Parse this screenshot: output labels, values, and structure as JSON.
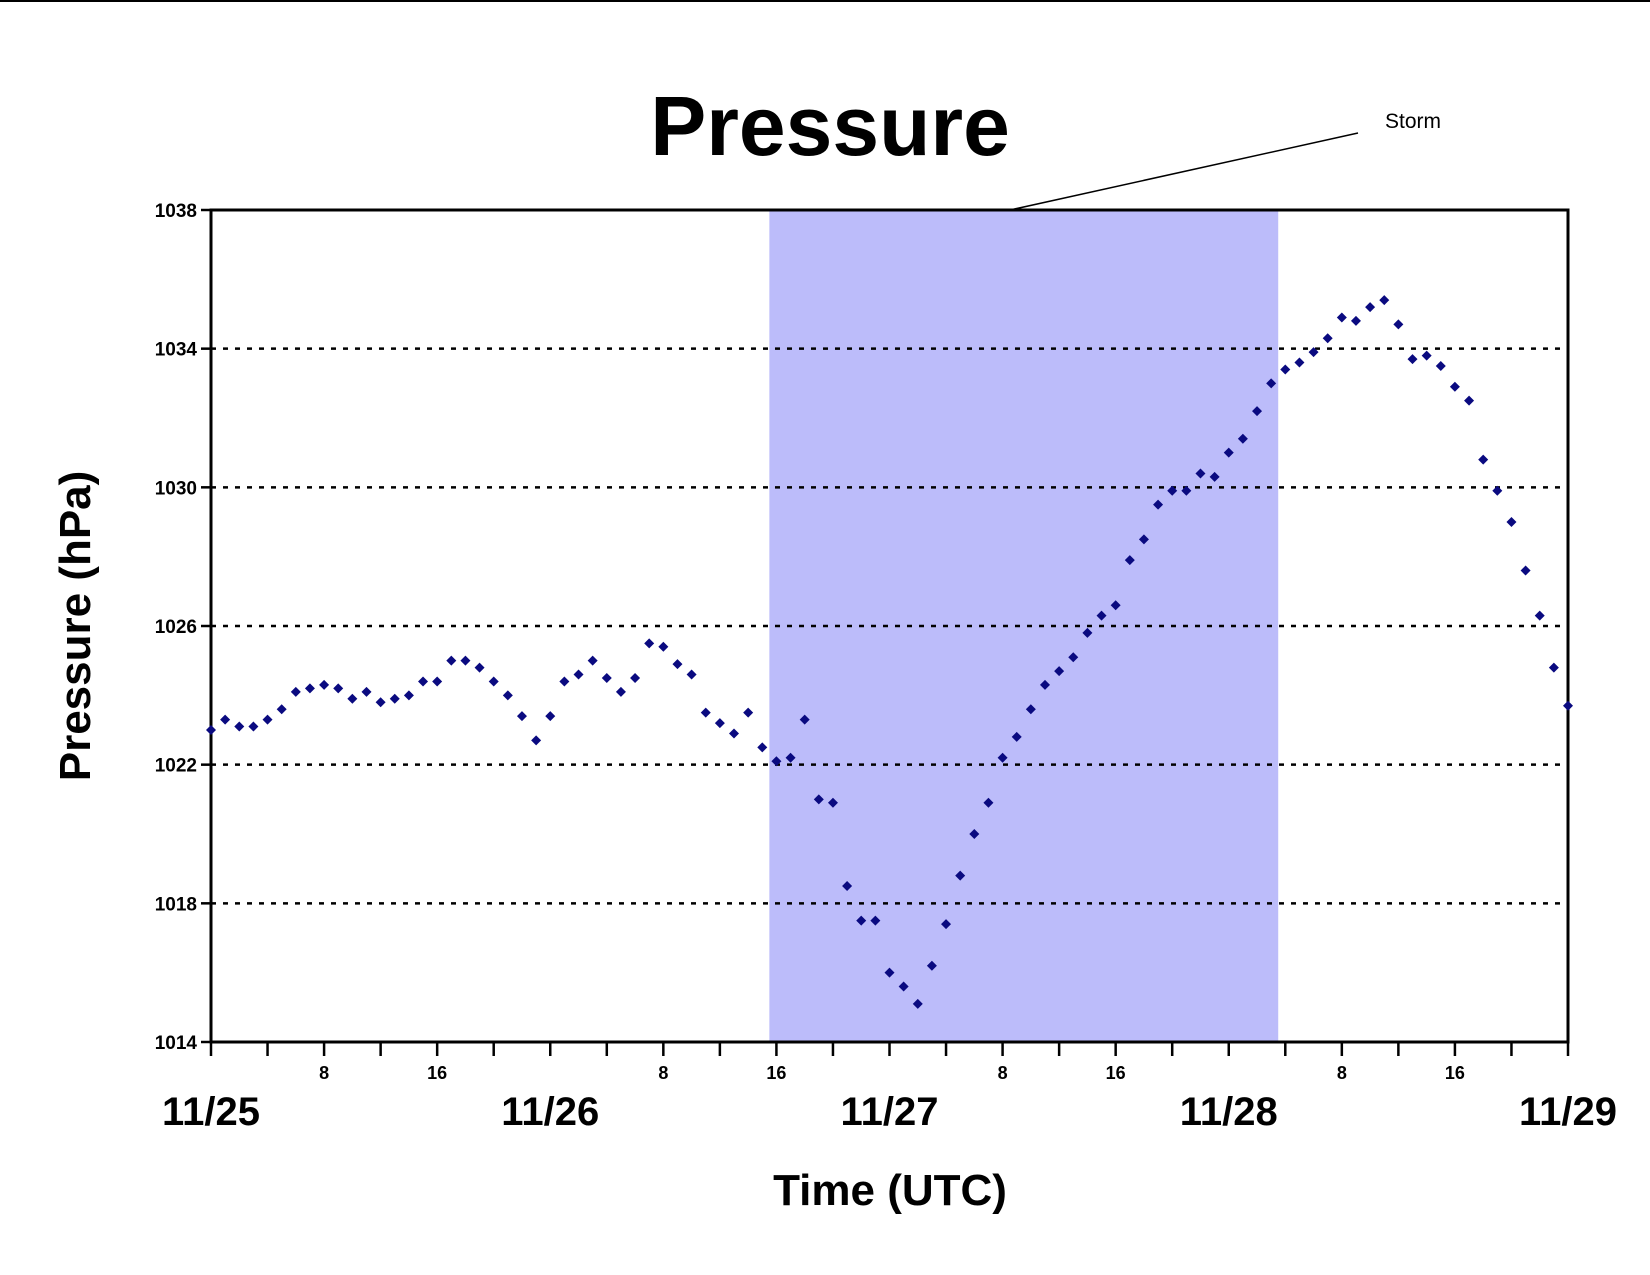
{
  "chart_data": {
    "type": "scatter",
    "title": "Pressure",
    "xlabel": "Time (UTC)",
    "ylabel": "Pressure (hPa)",
    "xlim": [
      "11/25 00:00",
      "11/29 00:00"
    ],
    "ylim": [
      1014,
      1038
    ],
    "yticks": [
      1014,
      1018,
      1022,
      1026,
      1030,
      1034,
      1038
    ],
    "xticks_day": [
      "11/25",
      "11/26",
      "11/27",
      "11/28",
      "11/29"
    ],
    "xticks_hour": [
      "8",
      "16"
    ],
    "grid": "horizontal dotted",
    "marker_color": "#0a0a80",
    "shade_color": "#bcbcfa",
    "shaded_region": {
      "label": "Storm",
      "start": "11/26 15:30",
      "end": "11/28 03:30"
    },
    "series": [
      {
        "x": [
          "11/25 00:00",
          "11/25 01:00",
          "11/25 02:00",
          "11/25 03:00",
          "11/25 04:00",
          "11/25 05:00",
          "11/25 06:00",
          "11/25 07:00",
          "11/25 08:00",
          "11/25 09:00",
          "11/25 10:00",
          "11/25 11:00",
          "11/25 12:00",
          "11/25 13:00",
          "11/25 14:00",
          "11/25 15:00",
          "11/25 16:00",
          "11/25 17:00",
          "11/25 18:00",
          "11/25 19:00",
          "11/25 20:00",
          "11/25 21:00",
          "11/25 22:00",
          "11/25 23:00",
          "11/26 00:00",
          "11/26 01:00",
          "11/26 02:00",
          "11/26 03:00",
          "11/26 04:00",
          "11/26 05:00",
          "11/26 06:00",
          "11/26 07:00",
          "11/26 08:00",
          "11/26 09:00",
          "11/26 10:00",
          "11/26 11:00",
          "11/26 12:00",
          "11/26 13:00",
          "11/26 14:00",
          "11/26 15:00",
          "11/26 16:00",
          "11/26 17:00",
          "11/26 18:00",
          "11/26 19:00",
          "11/26 20:00",
          "11/26 21:00",
          "11/26 22:00",
          "11/26 23:00",
          "11/27 00:00",
          "11/27 01:00",
          "11/27 02:00",
          "11/27 03:00",
          "11/27 04:00",
          "11/27 05:00",
          "11/27 06:00",
          "11/27 07:00",
          "11/27 08:00",
          "11/27 09:00",
          "11/27 10:00",
          "11/27 11:00",
          "11/27 12:00",
          "11/27 13:00",
          "11/27 14:00",
          "11/27 15:00",
          "11/27 16:00",
          "11/27 17:00",
          "11/27 18:00",
          "11/27 19:00",
          "11/27 20:00",
          "11/27 21:00",
          "11/27 22:00",
          "11/27 23:00",
          "11/28 00:00",
          "11/28 01:00",
          "11/28 02:00",
          "11/28 03:00",
          "11/28 04:00",
          "11/28 05:00",
          "11/28 06:00",
          "11/28 07:00",
          "11/28 08:00",
          "11/28 09:00",
          "11/28 10:00",
          "11/28 11:00",
          "11/28 12:00",
          "11/28 13:00",
          "11/28 14:00",
          "11/28 15:00",
          "11/28 16:00",
          "11/28 17:00",
          "11/28 18:00",
          "11/28 19:00",
          "11/28 20:00",
          "11/28 21:00",
          "11/28 22:00",
          "11/28 23:00",
          "11/29 00:00"
        ],
        "y": [
          1023.0,
          1023.3,
          1023.1,
          1023.1,
          1023.3,
          1023.6,
          1024.1,
          1024.2,
          1024.3,
          1024.2,
          1023.9,
          1024.1,
          1023.8,
          1023.9,
          1024.0,
          1024.4,
          1024.4,
          1025.0,
          1025.0,
          1024.8,
          1024.4,
          1024.0,
          1023.4,
          1022.7,
          1023.4,
          1024.4,
          1024.6,
          1025.0,
          1024.5,
          1024.1,
          1024.5,
          1025.5,
          1025.4,
          1024.9,
          1024.6,
          1023.5,
          1023.2,
          1022.9,
          1023.5,
          1022.5,
          1022.1,
          1022.2,
          1023.3,
          1021.0,
          1020.9,
          1018.5,
          1017.5,
          1017.5,
          1016.0,
          1015.6,
          1015.1,
          1016.2,
          1017.4,
          1018.8,
          1020.0,
          1020.9,
          1022.2,
          1022.8,
          1023.6,
          1024.3,
          1024.7,
          1025.1,
          1025.8,
          1026.3,
          1026.6,
          1027.9,
          1028.5,
          1029.5,
          1029.9,
          1029.9,
          1030.4,
          1030.3,
          1031.0,
          1031.4,
          1032.2,
          1033.0,
          1033.4,
          1033.6,
          1033.9,
          1034.3,
          1034.9,
          1034.8,
          1035.2,
          1035.4,
          1034.7,
          1033.7,
          1033.8,
          1033.5,
          1032.9,
          1032.5,
          1030.8,
          1029.9,
          1029.0,
          1027.6,
          1026.3,
          1024.8,
          1023.7
        ]
      }
    ]
  }
}
